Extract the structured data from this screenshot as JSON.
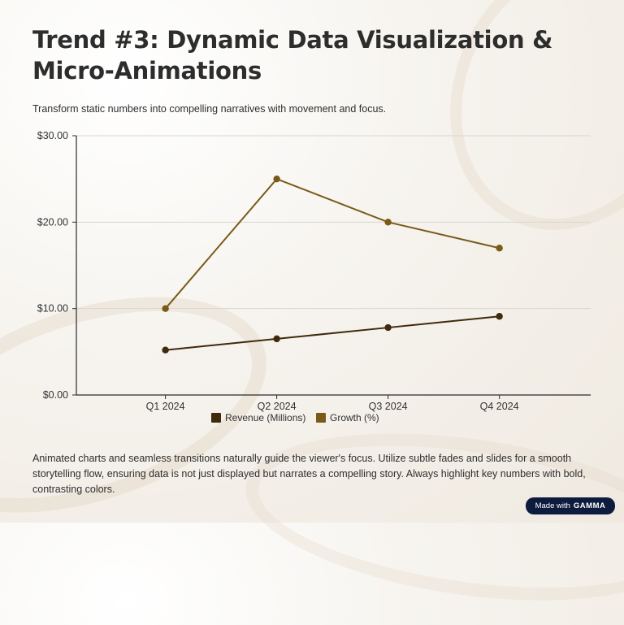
{
  "title": "Trend #3: Dynamic Data Visualization & Micro-Animations",
  "subtitle": "Transform static numbers into compelling narratives with movement and focus.",
  "body_text": "Animated charts and seamless transitions naturally guide the viewer's focus. Utilize subtle fades and slides for a smooth storytelling flow, ensuring data is not just displayed but narrates a compelling story. Always highlight key numbers with bold, contrasting colors.",
  "badge": {
    "prefix": "Made with",
    "brand": "GAMMA"
  },
  "colors": {
    "revenue": "#3f2b0c",
    "growth": "#7a5a18",
    "grid": "#d9d6d1",
    "axis": "#2b2b2b"
  },
  "chart_data": {
    "type": "line",
    "categories": [
      "Q1 2024",
      "Q2 2024",
      "Q3 2024",
      "Q4 2024"
    ],
    "series": [
      {
        "name": "Revenue (Millions)",
        "values": [
          5.2,
          6.5,
          7.8,
          9.1
        ]
      },
      {
        "name": "Growth (%)",
        "values": [
          10,
          25,
          20,
          17
        ]
      }
    ],
    "y_ticks": [
      "$0.00",
      "$10.00",
      "$20.00",
      "$30.00"
    ],
    "ylim": [
      0,
      30
    ],
    "grid": true,
    "legend": "bottom"
  }
}
